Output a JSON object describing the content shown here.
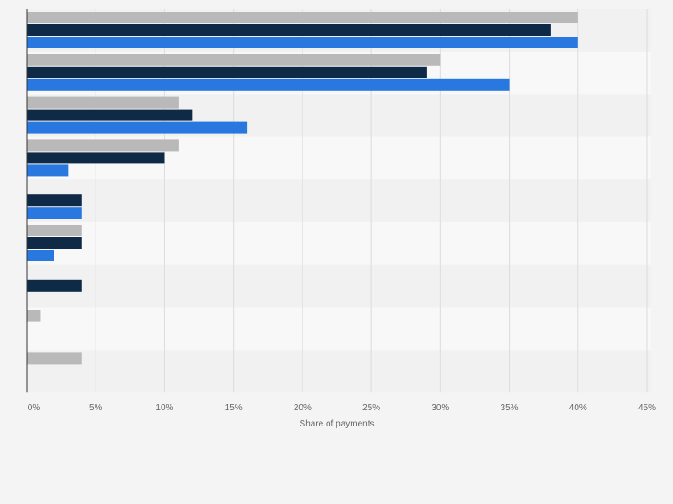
{
  "chart_data": {
    "type": "bar",
    "orientation": "horizontal",
    "xlabel": "Share of payments",
    "xlim": [
      0,
      45
    ],
    "x_ticks": [
      "0%",
      "5%",
      "10%",
      "15%",
      "20%",
      "25%",
      "30%",
      "35%",
      "40%",
      "45%"
    ],
    "grid": true,
    "categories": [
      "",
      "",
      "",
      "",
      "",
      "",
      "",
      "",
      ""
    ],
    "series": [
      {
        "color": "#b9b9b9",
        "values": [
          40,
          30,
          11,
          11,
          null,
          4,
          null,
          1,
          4
        ]
      },
      {
        "color": "#0f2a47",
        "values": [
          38,
          29,
          12,
          10,
          4,
          4,
          4,
          null,
          null
        ]
      },
      {
        "color": "#2878e0",
        "values": [
          40,
          35,
          16,
          3,
          4,
          2,
          null,
          null,
          null
        ]
      }
    ]
  }
}
